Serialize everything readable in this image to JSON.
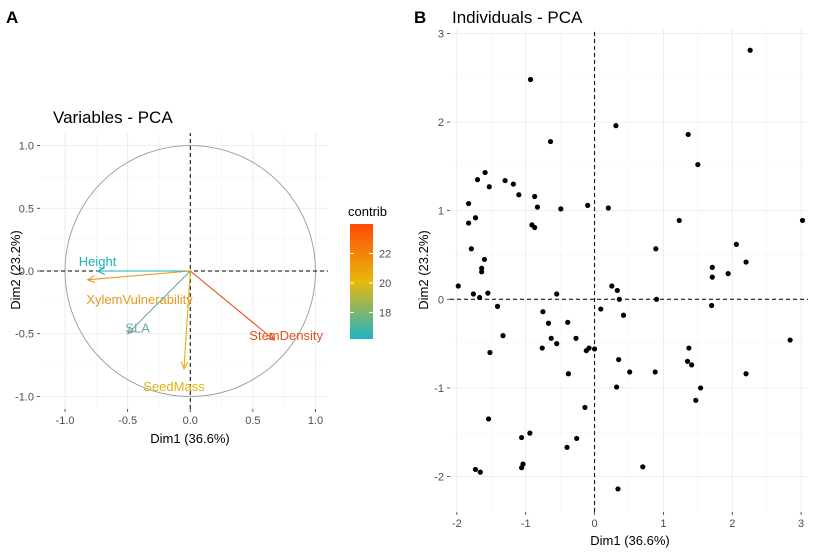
{
  "panels": {
    "a_letter": "A",
    "b_letter": "B"
  },
  "chart_data": [
    {
      "type": "scatter",
      "subtype": "pca-variables",
      "title": "Variables - PCA",
      "xlabel": "Dim1 (36.6%)",
      "ylabel": "Dim2 (23.2%)",
      "xlim": [
        -1.2,
        1.1
      ],
      "ylim": [
        -1.1,
        1.1
      ],
      "x_ticks": [
        -1.0,
        -0.5,
        0.0,
        0.5,
        1.0
      ],
      "x_tick_labels": [
        "-1.0",
        "-0.5",
        "0.0",
        "0.5",
        "1.0"
      ],
      "y_ticks": [
        -1.0,
        -0.5,
        0.0,
        0.5,
        1.0
      ],
      "y_tick_labels": [
        "-1.0",
        "-0.5",
        "0.0",
        "0.5",
        "1.0"
      ],
      "grid": true,
      "correlation_circle": true,
      "variables": [
        {
          "name": "Height",
          "x": -0.74,
          "y": 0.0,
          "contrib": 16.5,
          "color": "#1ab0b8"
        },
        {
          "name": "XylemVulnerability",
          "x": -0.82,
          "y": -0.07,
          "contrib": 20.5,
          "color": "#e69a1e"
        },
        {
          "name": "SLA",
          "x": -0.5,
          "y": -0.5,
          "contrib": 17.5,
          "color": "#6ea9a0"
        },
        {
          "name": "StemDensity",
          "x": 0.67,
          "y": -0.55,
          "contrib": 23.5,
          "color": "#e0531a"
        },
        {
          "name": "SeedMass",
          "x": -0.05,
          "y": -0.78,
          "contrib": 20.5,
          "color": "#e4b20e"
        }
      ],
      "legend": {
        "title": "contrib",
        "placement": "right",
        "range": [
          16.2,
          24.0
        ],
        "ticks": [
          18,
          20,
          22
        ],
        "tick_labels": [
          "18",
          "20",
          "22"
        ],
        "colors": [
          "#1fb4c4",
          "#e8b80c",
          "#ff4a04"
        ]
      }
    },
    {
      "type": "scatter",
      "subtype": "pca-individuals",
      "title": "Individuals - PCA",
      "xlabel": "Dim1 (36.6%)",
      "ylabel": "Dim2 (23.2%)",
      "xlim": [
        -2.1,
        3.1
      ],
      "ylim": [
        -2.4,
        3.05
      ],
      "x_ticks": [
        -2,
        -1,
        0,
        1,
        2,
        3
      ],
      "x_tick_labels": [
        "-2",
        "-1",
        "0",
        "1",
        "2",
        "3"
      ],
      "y_ticks": [
        -2,
        -1,
        0,
        1,
        2,
        3
      ],
      "y_tick_labels": [
        "-2",
        "-1",
        "0",
        "1",
        "2",
        "3"
      ],
      "grid": true,
      "point_color": "#000000",
      "points": [
        [
          2.26,
          2.81
        ],
        [
          -0.93,
          2.48
        ],
        [
          0.31,
          1.96
        ],
        [
          -0.64,
          1.78
        ],
        [
          1.36,
          1.86
        ],
        [
          1.5,
          1.52
        ],
        [
          -1.59,
          1.43
        ],
        [
          -1.3,
          1.34
        ],
        [
          -1.18,
          1.3
        ],
        [
          -1.7,
          1.35
        ],
        [
          -1.53,
          1.27
        ],
        [
          -1.1,
          1.18
        ],
        [
          -0.87,
          1.16
        ],
        [
          -1.83,
          1.08
        ],
        [
          -0.83,
          1.04
        ],
        [
          -0.49,
          1.02
        ],
        [
          -0.1,
          1.06
        ],
        [
          0.2,
          1.03
        ],
        [
          -1.73,
          0.92
        ],
        [
          -0.91,
          0.84
        ],
        [
          -0.87,
          0.81
        ],
        [
          1.23,
          0.89
        ],
        [
          3.02,
          0.89
        ],
        [
          -1.83,
          0.86
        ],
        [
          -1.79,
          0.57
        ],
        [
          0.89,
          0.57
        ],
        [
          2.06,
          0.62
        ],
        [
          2.2,
          0.42
        ],
        [
          -1.6,
          0.45
        ],
        [
          -1.64,
          0.35
        ],
        [
          -1.64,
          0.31
        ],
        [
          1.71,
          0.36
        ],
        [
          1.71,
          0.25
        ],
        [
          1.94,
          0.29
        ],
        [
          -1.98,
          0.15
        ],
        [
          0.25,
          0.15
        ],
        [
          0.33,
          0.1
        ],
        [
          -1.76,
          0.06
        ],
        [
          -1.67,
          0.02
        ],
        [
          -1.55,
          0.07
        ],
        [
          -0.55,
          0.06
        ],
        [
          0.36,
          0.0
        ],
        [
          0.9,
          0.0
        ],
        [
          -1.41,
          -0.08
        ],
        [
          1.7,
          -0.07
        ],
        [
          0.09,
          -0.11
        ],
        [
          -0.75,
          -0.14
        ],
        [
          0.42,
          -0.18
        ],
        [
          -0.67,
          -0.27
        ],
        [
          -0.39,
          -0.26
        ],
        [
          -1.33,
          -0.41
        ],
        [
          -0.63,
          -0.44
        ],
        [
          -0.27,
          -0.44
        ],
        [
          -0.76,
          -0.55
        ],
        [
          -0.55,
          -0.5
        ],
        [
          -0.08,
          -0.55
        ],
        [
          2.84,
          -0.46
        ],
        [
          0.0,
          -0.56
        ],
        [
          1.37,
          -0.55
        ],
        [
          -1.52,
          -0.6
        ],
        [
          -0.12,
          -0.58
        ],
        [
          0.35,
          -0.68
        ],
        [
          1.35,
          -0.7
        ],
        [
          1.41,
          -0.74
        ],
        [
          2.2,
          -0.84
        ],
        [
          -0.38,
          -0.84
        ],
        [
          0.88,
          -0.82
        ],
        [
          0.51,
          -0.82
        ],
        [
          1.54,
          -1.0
        ],
        [
          0.32,
          -0.99
        ],
        [
          1.47,
          -1.14
        ],
        [
          -0.14,
          -1.22
        ],
        [
          -1.54,
          -1.35
        ],
        [
          -0.94,
          -1.51
        ],
        [
          -1.06,
          -1.56
        ],
        [
          -0.26,
          -1.57
        ],
        [
          -0.4,
          -1.67
        ],
        [
          -1.04,
          -1.86
        ],
        [
          -1.06,
          -1.9
        ],
        [
          -1.73,
          -1.92
        ],
        [
          -1.66,
          -1.95
        ],
        [
          0.7,
          -1.89
        ],
        [
          0.34,
          -2.14
        ]
      ]
    }
  ]
}
